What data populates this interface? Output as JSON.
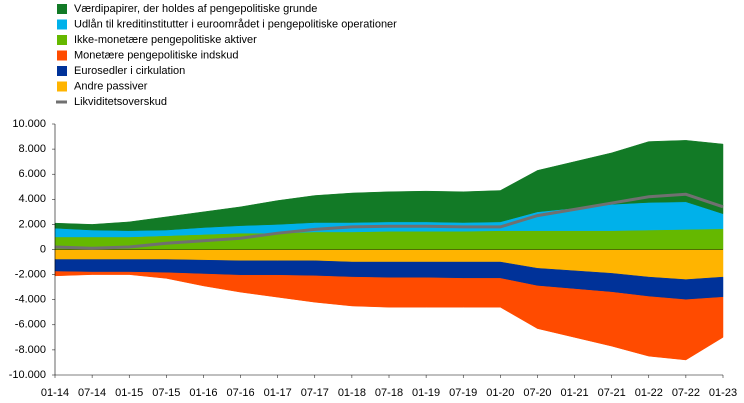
{
  "chart_data": {
    "type": "area",
    "x": [
      "01-14",
      "07-14",
      "01-15",
      "07-15",
      "01-16",
      "07-16",
      "01-17",
      "07-17",
      "01-18",
      "07-18",
      "01-19",
      "07-19",
      "01-20",
      "07-20",
      "01-21",
      "07-21",
      "01-22",
      "07-22",
      "01-23"
    ],
    "ylim": [
      -10000,
      10000
    ],
    "yticks": [
      {
        "value": -10000,
        "label": "-10.000"
      },
      {
        "value": -8000,
        "label": "-8.000"
      },
      {
        "value": -6000,
        "label": "-6.000"
      },
      {
        "value": -4000,
        "label": "-4.000"
      },
      {
        "value": -2000,
        "label": "-2.000"
      },
      0,
      {
        "value": 2000,
        "label": "2.000"
      },
      {
        "value": 4000,
        "label": "4.000"
      },
      {
        "value": 6000,
        "label": "6.000"
      },
      {
        "value": 8000,
        "label": "8.000"
      },
      {
        "value": 10000,
        "label": "10.000"
      }
    ],
    "series": [
      {
        "name": "Værdipapirer, der holdes af pengepolitiske grunde",
        "color": "#127a26",
        "values": [
          400,
          450,
          700,
          1050,
          1250,
          1500,
          1900,
          2150,
          2350,
          2400,
          2450,
          2450,
          2500,
          3300,
          3700,
          4100,
          4850,
          4900,
          5550
        ]
      },
      {
        "name": "Udlån til kreditinstitutter i euroområdet i pengepolitiske operationer",
        "color": "#00b1ea",
        "values": [
          700,
          550,
          500,
          450,
          550,
          600,
          700,
          750,
          750,
          750,
          750,
          700,
          700,
          1500,
          1800,
          2100,
          2200,
          2200,
          1200
        ]
      },
      {
        "name": "Ikke-monetære pengepolitiske aktiver",
        "color": "#65b800",
        "values": [
          1000,
          1000,
          1000,
          1100,
          1200,
          1300,
          1300,
          1400,
          1400,
          1450,
          1450,
          1450,
          1500,
          1500,
          1500,
          1500,
          1550,
          1600,
          1650
        ]
      },
      {
        "name": "Monetære pengepolitiske indskud",
        "color": "#ff4b00",
        "values": [
          -350,
          -200,
          -200,
          -450,
          -950,
          -1350,
          -1750,
          -2100,
          -2300,
          -2350,
          -2350,
          -2300,
          -2300,
          -3400,
          -3850,
          -4300,
          -4750,
          -4800,
          -3200
        ]
      },
      {
        "name": "Eurosedler i cirkulation",
        "color": "#003299",
        "values": [
          -950,
          -1000,
          -1000,
          -1050,
          -1100,
          -1150,
          -1150,
          -1200,
          -1200,
          -1250,
          -1250,
          -1300,
          -1300,
          -1400,
          -1450,
          -1500,
          -1550,
          -1600,
          -1600
        ]
      },
      {
        "name": "Andre passiver",
        "color": "#ffb400",
        "values": [
          -800,
          -800,
          -800,
          -800,
          -850,
          -900,
          -900,
          -900,
          -1000,
          -1000,
          -1000,
          -1000,
          -1000,
          -1500,
          -1700,
          -1900,
          -2200,
          -2400,
          -2200
        ]
      },
      {
        "name": "Likviditetsoverskud",
        "color": "#707070",
        "type": "line",
        "values": [
          200,
          100,
          200,
          500,
          700,
          900,
          1300,
          1600,
          1800,
          1850,
          1850,
          1800,
          1800,
          2700,
          3200,
          3700,
          4200,
          4400,
          3400
        ]
      }
    ]
  }
}
